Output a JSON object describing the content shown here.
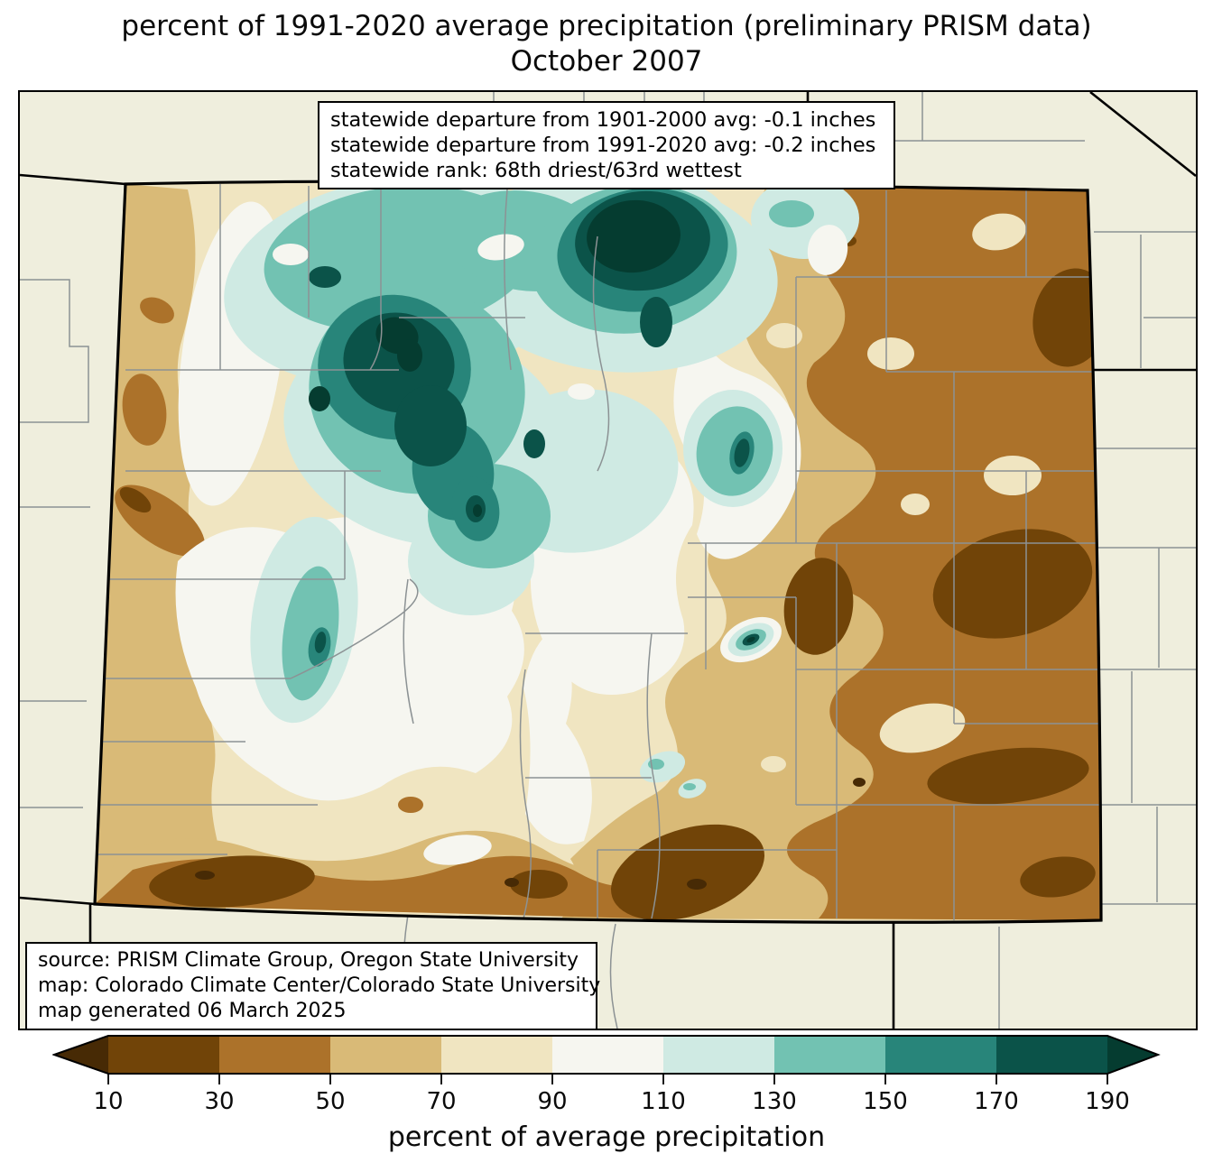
{
  "title": {
    "line1": "percent of 1991-2020 average precipitation (preliminary PRISM data)",
    "line2": "October 2007"
  },
  "stats_box": {
    "lines": [
      "statewide departure from 1901-2000 avg: -0.1 inches",
      "statewide departure from 1991-2020 avg: -0.2 inches",
      "statewide rank: 68th driest/63rd wettest"
    ]
  },
  "source_box": {
    "lines": [
      "source: PRISM Climate Group, Oregon State University",
      "map: Colorado Climate Center/Colorado State University",
      "map generated 06 March 2025"
    ]
  },
  "colorbar": {
    "label": "percent of average precipitation",
    "units": "percent",
    "ticks": [
      10,
      30,
      50,
      70,
      90,
      110,
      130,
      150,
      170,
      190
    ],
    "band_ranges": [
      "<10",
      "10-30",
      "30-50",
      "50-70",
      "70-90",
      "90-110",
      "110-130",
      "130-150",
      "150-170",
      "170-190",
      ">190"
    ],
    "band_colors": [
      "#472a05",
      "#714408",
      "#ac722a",
      "#d9ba77",
      "#f0e5c1",
      "#f6f6f0",
      "#cfeae3",
      "#72c2b2",
      "#28857a",
      "#0b5349",
      "#053c30"
    ],
    "extend": "both"
  },
  "map": {
    "region": "Colorado",
    "background_color": "#efeedd",
    "county_line_color": "#8c9294",
    "state_border_color": "#000000",
    "features": [
      {
        "area": "northwest and north-central mountains",
        "value": "110 to >190% of average (much wetter)"
      },
      {
        "area": "north-central core near north state line",
        "value": ">190% of average"
      },
      {
        "area": "Flat Tops / west-central core",
        "value": "170 to >190% of average"
      },
      {
        "area": "eastern plains",
        "value": "10-50% of average (much drier)"
      },
      {
        "area": "east-central dark core",
        "value": "10-30% of average"
      },
      {
        "area": "southern border region",
        "value": "10-50% of average"
      },
      {
        "area": "small wet bullseye east of the central mountains",
        "value": "150->190% of average"
      },
      {
        "area": "central valleys transition band",
        "value": "90-110% of average (near normal)"
      },
      {
        "area": "west edge strip",
        "value": "50-70% of average"
      }
    ]
  }
}
